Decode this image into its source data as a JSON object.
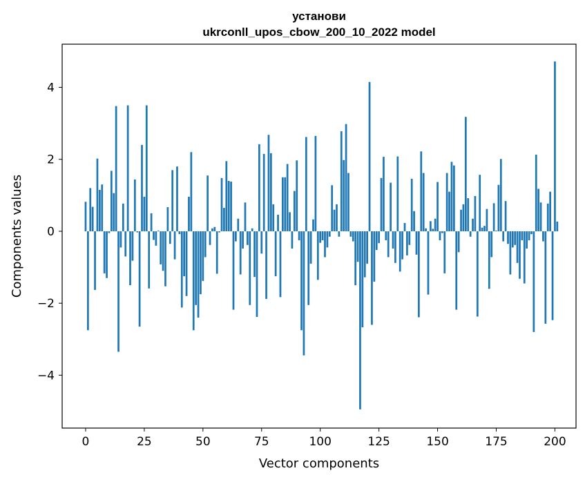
{
  "chart_data": {
    "type": "bar",
    "title_line1": "установи",
    "title_line2": "ukrconll_upos_cbow_200_10_2022 model",
    "xlabel": "Vector components",
    "ylabel": "Components values",
    "xlim": [
      -10,
      209
    ],
    "ylim": [
      -5.47,
      5.2
    ],
    "grid": false,
    "legend": "none",
    "bar_color": "#1f77b4",
    "x_ticks": [
      0,
      25,
      50,
      75,
      100,
      125,
      150,
      175,
      200
    ],
    "x_tick_labels": [
      "0",
      "25",
      "50",
      "75",
      "100",
      "125",
      "150",
      "175",
      "200"
    ],
    "y_ticks": [
      -4,
      -2,
      0,
      2,
      4
    ],
    "y_tick_labels": [
      "−4",
      "−2",
      "0",
      "2",
      "4"
    ],
    "values": [
      0.82,
      -2.75,
      1.2,
      0.68,
      -1.63,
      2.02,
      1.15,
      1.3,
      -1.17,
      -1.3,
      -0.05,
      1.68,
      1.06,
      3.48,
      -3.35,
      -0.45,
      0.77,
      -0.7,
      3.5,
      -1.5,
      -0.82,
      1.44,
      -0.03,
      -2.65,
      2.4,
      0.96,
      3.5,
      -1.59,
      0.5,
      -0.24,
      -0.4,
      0.02,
      -0.92,
      -1.1,
      -1.53,
      0.67,
      -0.35,
      1.7,
      -0.78,
      1.8,
      -0.08,
      -2.12,
      -1.25,
      -1.8,
      0.96,
      2.2,
      -2.75,
      -2.05,
      -2.4,
      -1.75,
      -1.38,
      -0.72,
      1.55,
      -0.38,
      0.08,
      0.12,
      -1.18,
      -0.03,
      1.48,
      0.65,
      1.95,
      1.4,
      1.38,
      -2.18,
      -0.28,
      0.35,
      -1.2,
      -0.48,
      0.8,
      -0.38,
      -2.05,
      0.08,
      -1.27,
      -2.38,
      2.42,
      -0.62,
      2.15,
      -1.88,
      2.68,
      2.17,
      0.75,
      -1.25,
      0.46,
      -1.83,
      1.5,
      1.5,
      1.87,
      0.53,
      -0.48,
      1.12,
      1.97,
      -0.25,
      -2.75,
      -3.45,
      2.62,
      -2.05,
      -0.9,
      0.33,
      2.65,
      -1.35,
      -0.32,
      -0.25,
      -0.72,
      -0.45,
      -0.15,
      1.28,
      0.6,
      0.75,
      -0.15,
      2.78,
      1.98,
      2.98,
      1.62,
      -0.15,
      -0.28,
      -1.5,
      -0.85,
      -4.95,
      -2.67,
      -1.28,
      -0.9,
      4.15,
      -2.6,
      -1.4,
      -0.52,
      -0.33,
      1.48,
      2.07,
      -0.25,
      -0.72,
      1.35,
      -0.48,
      -0.88,
      2.08,
      -1.12,
      -0.78,
      0.23,
      -0.67,
      -0.38,
      1.46,
      0.56,
      -0.65,
      -2.39,
      2.22,
      1.62,
      0.08,
      -1.76,
      0.28,
      0.07,
      0.35,
      1.37,
      -0.25,
      -0.05,
      -1.17,
      1.62,
      1.1,
      1.93,
      1.83,
      -2.18,
      -0.58,
      0.6,
      0.75,
      3.18,
      0.92,
      -0.15,
      0.35,
      0.98,
      -2.37,
      1.57,
      0.1,
      0.15,
      0.62,
      -1.6,
      -0.72,
      0.78,
      0.02,
      1.29,
      2.01,
      -0.28,
      0.84,
      -0.35,
      -1.2,
      -0.45,
      -0.38,
      -0.88,
      -1.32,
      -0.25,
      -1.45,
      -0.48,
      -0.25,
      -0.08,
      -2.8,
      2.13,
      1.18,
      0.8,
      -0.28,
      -2.57,
      0.77,
      1.1,
      -2.47,
      4.72,
      0.27
    ]
  }
}
